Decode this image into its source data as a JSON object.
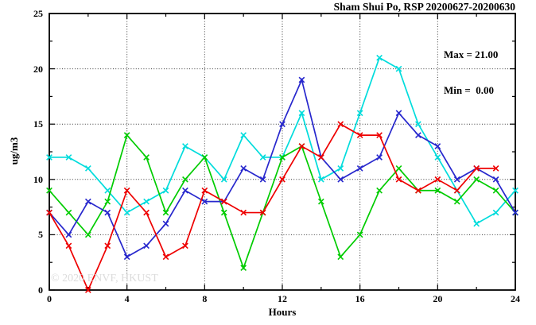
{
  "title": "Sham Shui Po, RSP 20200627-20200630",
  "stats": {
    "max_label": "Max = 21.00",
    "min_label": "Min =  0.00"
  },
  "watermark": "© 2020 ENVF, HKUST",
  "chart_data": {
    "type": "line",
    "title": "Sham Shui Po, RSP 20200627-20200630",
    "xlabel": "Hours",
    "ylabel": "ug/m3",
    "xlim": [
      0,
      24
    ],
    "ylim": [
      0,
      25
    ],
    "x": [
      0,
      1,
      2,
      3,
      4,
      5,
      6,
      7,
      8,
      9,
      10,
      11,
      12,
      13,
      14,
      15,
      16,
      17,
      18,
      19,
      20,
      21,
      22,
      23,
      24
    ],
    "x_major_ticks": [
      0,
      4,
      8,
      12,
      16,
      20,
      24
    ],
    "x_minor_step": 2,
    "y_major_ticks": [
      0,
      5,
      10,
      15,
      20,
      25
    ],
    "y_minor_step": 2.5,
    "grid": "dotted lines at major ticks, full box frame with inward ticks",
    "legend": "none",
    "marker": "x-cross",
    "annotations": {
      "max": 21.0,
      "min": 0.0
    },
    "series": [
      {
        "name": "cyan",
        "color": "#00dcdc",
        "values": [
          12,
          12,
          11,
          9,
          7,
          8,
          9,
          13,
          12,
          10,
          14,
          12,
          12,
          16,
          10,
          11,
          16,
          21,
          20,
          15,
          12,
          9,
          6,
          7,
          9
        ]
      },
      {
        "name": "green",
        "color": "#00cc00",
        "values": [
          9,
          7,
          5,
          8,
          14,
          12,
          7,
          10,
          12,
          7,
          2,
          7,
          12,
          13,
          8,
          3,
          5,
          9,
          11,
          9,
          9,
          8,
          10,
          9,
          7
        ]
      },
      {
        "name": "blue",
        "color": "#2727cd",
        "values": [
          7,
          5,
          8,
          7,
          3,
          4,
          6,
          9,
          8,
          8,
          11,
          10,
          15,
          19,
          12,
          10,
          11,
          12,
          16,
          14,
          13,
          10,
          11,
          10,
          7
        ]
      },
      {
        "name": "red",
        "color": "#ee0000",
        "values": [
          7,
          4,
          0,
          4,
          9,
          7,
          3,
          4,
          9,
          8,
          7,
          7,
          10,
          13,
          12,
          15,
          14,
          14,
          10,
          9,
          10,
          9,
          11,
          11
        ]
      }
    ]
  }
}
